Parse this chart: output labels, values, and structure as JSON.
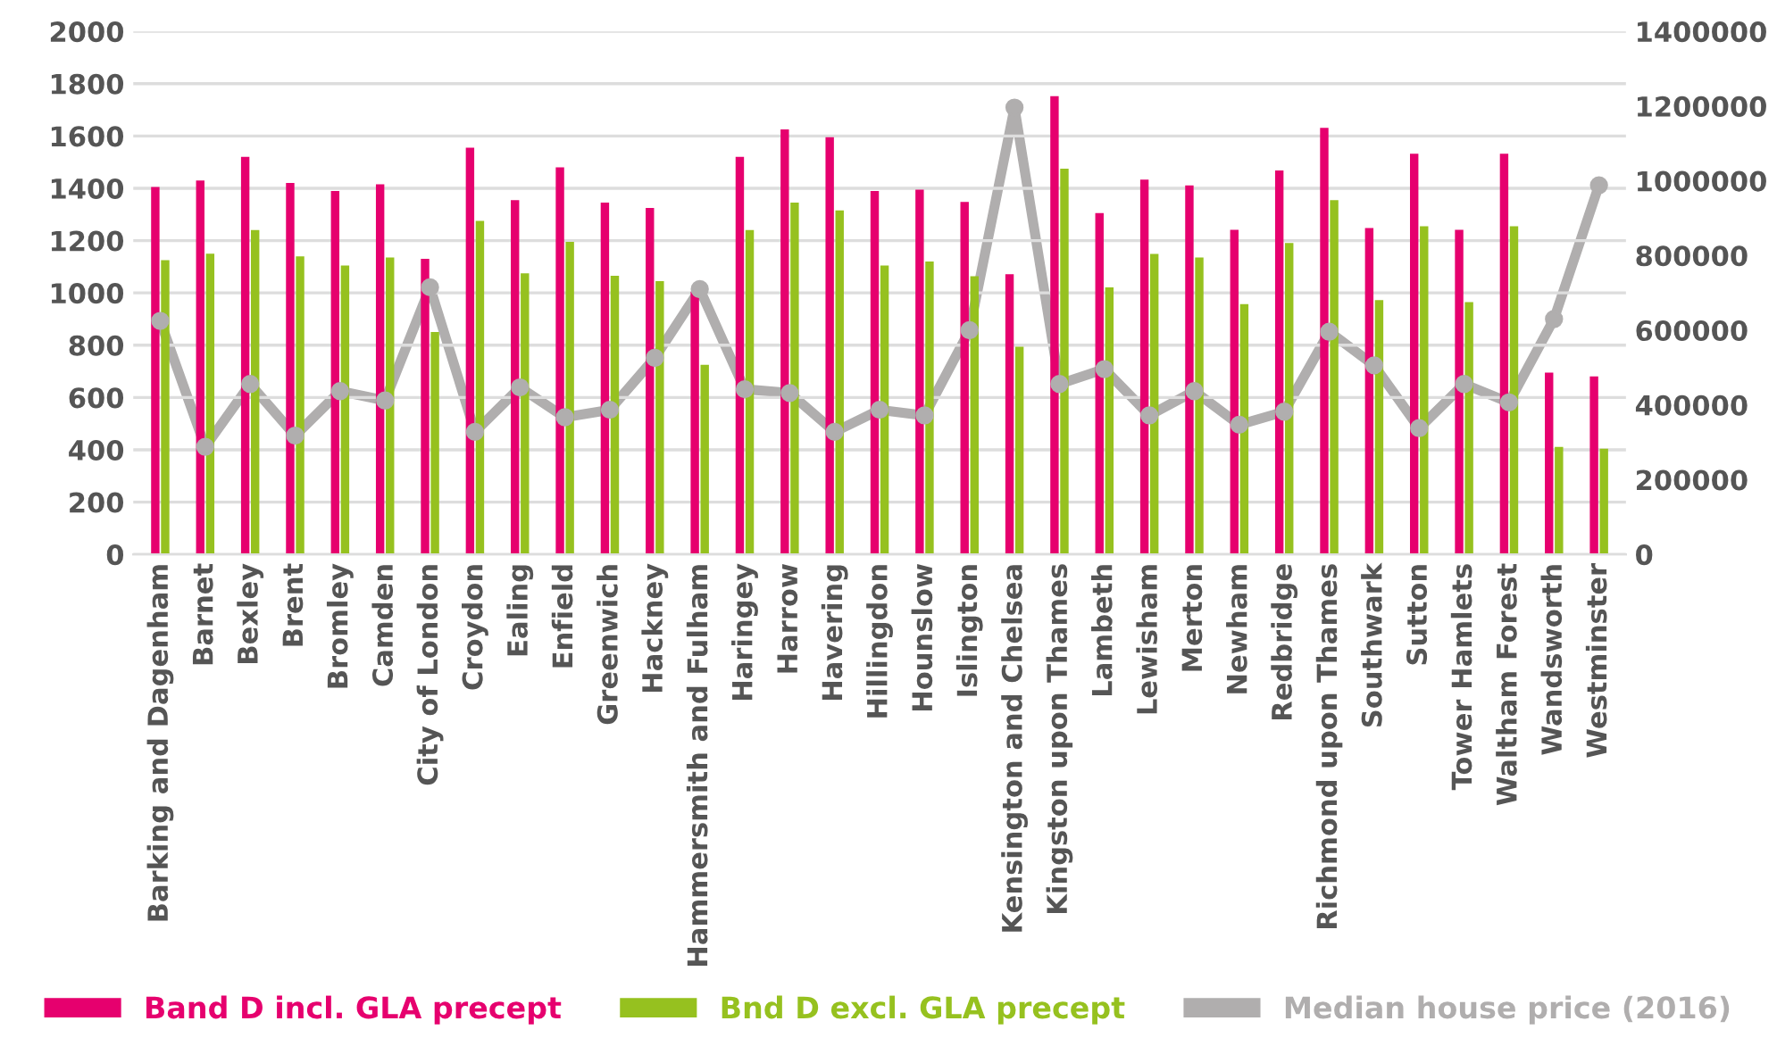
{
  "chart_data": {
    "type": "bar",
    "categories": [
      "Barking and Dagenham",
      "Barnet",
      "Bexley",
      "Brent",
      "Bromley",
      "Camden",
      "City of London",
      "Croydon",
      "Ealing",
      "Enfield",
      "Greenwich",
      "Hackney",
      "Hammersmith and Fulham",
      "Haringey",
      "Harrow",
      "Havering",
      "Hillingdon",
      "Hounslow",
      "Islington",
      "Kensington and Chelsea",
      "Kingston upon Thames",
      "Lambeth",
      "Lewisham",
      "Merton",
      "Newham",
      "Redbridge",
      "Richmond upon Thames",
      "Southwark",
      "Sutton",
      "Tower Hamlets",
      "Waltham Forest",
      "Wandsworth",
      "Westminster"
    ],
    "series": [
      {
        "name": "Band D incl. GLA precept",
        "color": "#e6006e",
        "values": [
          1405,
          1430,
          1520,
          1420,
          1390,
          1415,
          1130,
          1555,
          1355,
          1480,
          1345,
          1325,
          1005,
          1520,
          1625,
          1595,
          1390,
          1395,
          1348,
          1071,
          1752,
          1305,
          1433,
          1411,
          1241,
          1468,
          1631,
          1248,
          1532,
          1241,
          1532,
          695,
          681
        ]
      },
      {
        "name": "Bnd D excl. GLA precept",
        "color": "#96c11f",
        "values": [
          1125,
          1150,
          1240,
          1140,
          1105,
          1135,
          850,
          1275,
          1075,
          1195,
          1065,
          1045,
          725,
          1240,
          1345,
          1315,
          1105,
          1120,
          1064,
          794,
          1475,
          1021,
          1149,
          1135,
          957,
          1191,
          1355,
          972,
          1255,
          965,
          1255,
          411,
          404
        ]
      },
      {
        "name": "Median house price (2016)",
        "type": "line",
        "axis": "y2",
        "color": "#b0aeae",
        "marker": "circle",
        "values": [
          625000,
          288000,
          456000,
          318000,
          437000,
          412000,
          715000,
          328000,
          447000,
          367000,
          387000,
          526000,
          710000,
          442000,
          432000,
          328000,
          387000,
          372000,
          600000,
          1196000,
          456000,
          496000,
          372000,
          437000,
          347000,
          382000,
          596000,
          506000,
          338000,
          456000,
          407000,
          630000,
          988000
        ]
      }
    ],
    "ylim": [
      0,
      2000
    ],
    "yticks": [
      0,
      200,
      400,
      600,
      800,
      1000,
      1200,
      1400,
      1600,
      1800,
      2000
    ],
    "y2lim": [
      0,
      1400000
    ],
    "y2ticks": [
      0,
      200000,
      400000,
      600000,
      800000,
      1000000,
      1200000,
      1400000
    ],
    "grid": "y",
    "legend": "bottom"
  }
}
